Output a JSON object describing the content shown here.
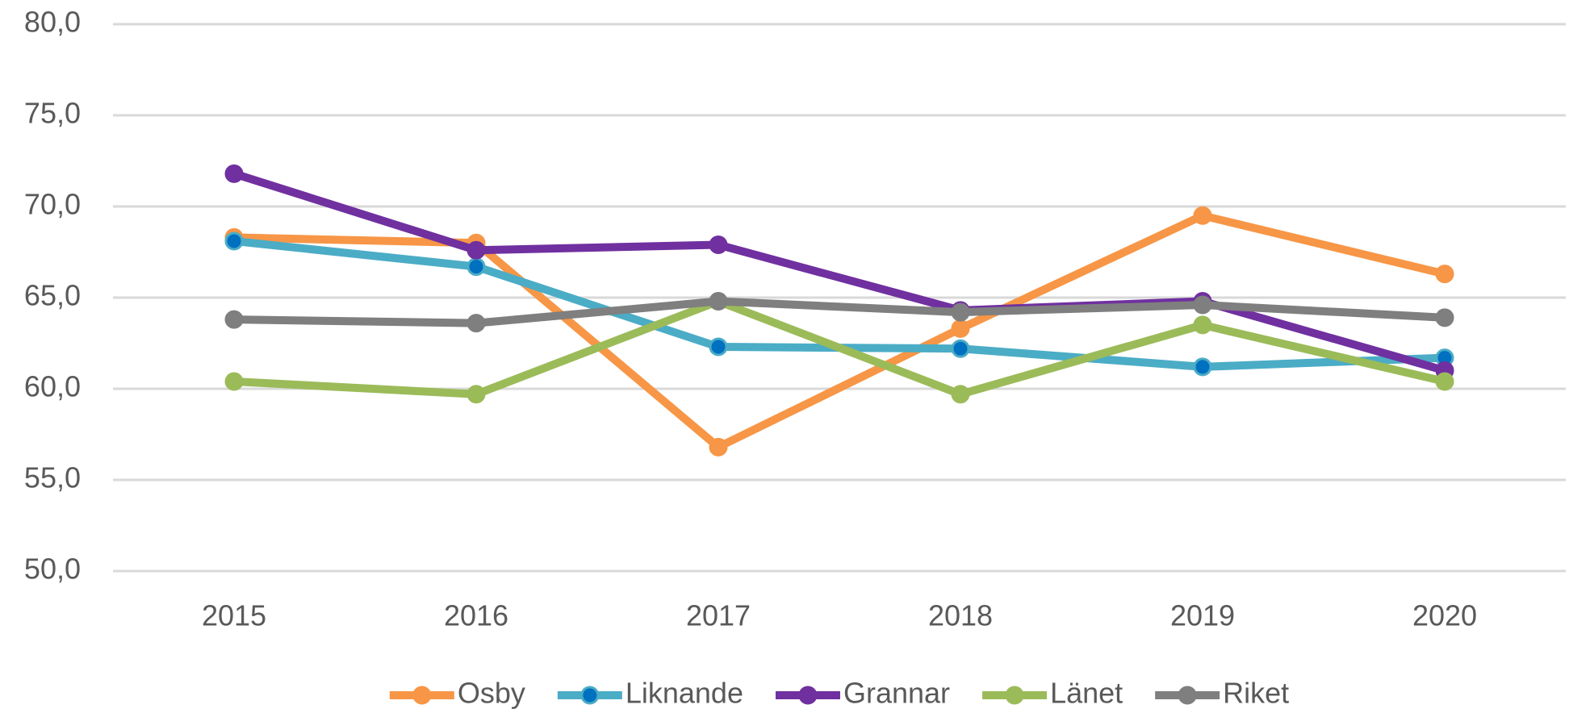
{
  "chart_data": {
    "type": "line",
    "categories": [
      "2015",
      "2016",
      "2017",
      "2018",
      "2019",
      "2020"
    ],
    "series": [
      {
        "name": "Osby",
        "color": "#f79646",
        "values": [
          68.3,
          68.0,
          56.8,
          63.3,
          69.5,
          66.3
        ]
      },
      {
        "name": "Liknande",
        "color": "#4bacc6",
        "marker_color": "#0070c0",
        "values": [
          68.1,
          66.7,
          62.3,
          62.2,
          61.2,
          61.7
        ]
      },
      {
        "name": "Grannar",
        "color": "#7030a0",
        "values": [
          71.8,
          67.6,
          67.9,
          64.3,
          64.8,
          61.0
        ]
      },
      {
        "name": "Länet",
        "color": "#9bbb59",
        "values": [
          60.4,
          59.7,
          64.8,
          59.7,
          63.5,
          60.4
        ]
      },
      {
        "name": "Riket",
        "color": "#7f7f7f",
        "values": [
          63.8,
          63.6,
          64.8,
          64.2,
          64.6,
          63.9
        ]
      }
    ],
    "ylim": [
      50,
      80
    ],
    "yticks": [
      {
        "value": 50,
        "label": "50,0"
      },
      {
        "value": 55,
        "label": "55,0"
      },
      {
        "value": 60,
        "label": "60,0"
      },
      {
        "value": 65,
        "label": "65,0"
      },
      {
        "value": 70,
        "label": "70,0"
      },
      {
        "value": 75,
        "label": "75,0"
      },
      {
        "value": 80,
        "label": "80,0"
      }
    ],
    "grid": true,
    "legend": "bottom"
  }
}
